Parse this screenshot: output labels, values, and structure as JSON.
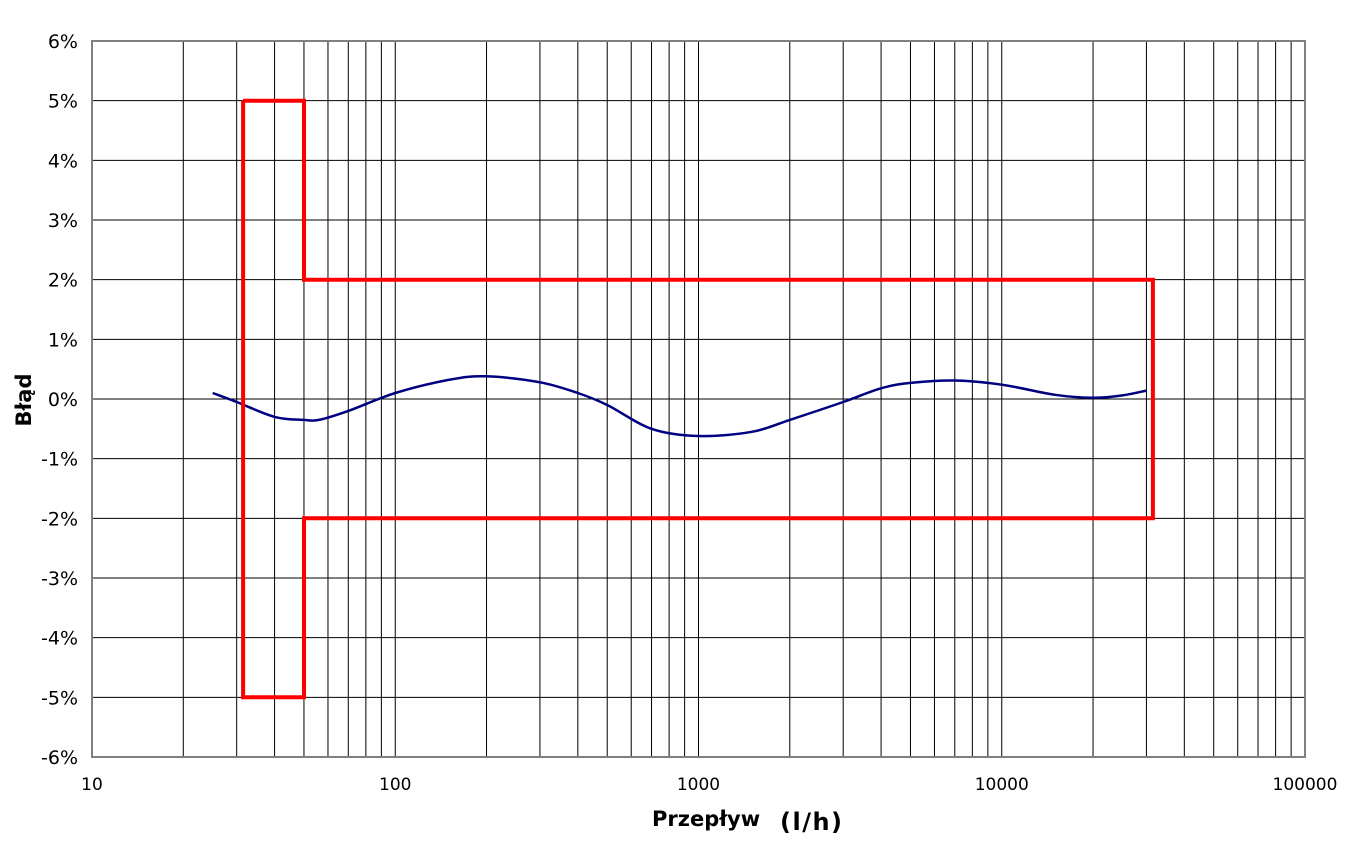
{
  "chart_data": {
    "type": "line",
    "xlabel": "Przepływ",
    "xunit": "(l/h)",
    "ylabel": "Błąd",
    "x_scale": "log",
    "xlim": [
      10,
      100000
    ],
    "ylim": [
      -6,
      6
    ],
    "y_unit_suffix": "%",
    "x_ticks": [
      "10",
      "100",
      "1000",
      "10000",
      "100000"
    ],
    "y_ticks": [
      "6%",
      "5%",
      "4%",
      "3%",
      "2%",
      "1%",
      "0%",
      "-1%",
      "-2%",
      "-3%",
      "-4%",
      "-5%",
      "-6%"
    ],
    "grid": {
      "major_x": true,
      "minor_x": true,
      "major_y": true
    },
    "legend": "none",
    "series": [
      {
        "color": "#000080",
        "kind": "curve",
        "points": [
          [
            25,
            0.1
          ],
          [
            30,
            -0.05
          ],
          [
            40,
            -0.3
          ],
          [
            50,
            -0.35
          ],
          [
            56,
            -0.35
          ],
          [
            70,
            -0.2
          ],
          [
            100,
            0.1
          ],
          [
            150,
            0.32
          ],
          [
            200,
            0.38
          ],
          [
            300,
            0.28
          ],
          [
            400,
            0.1
          ],
          [
            500,
            -0.1
          ],
          [
            700,
            -0.5
          ],
          [
            1000,
            -0.62
          ],
          [
            1500,
            -0.55
          ],
          [
            2000,
            -0.35
          ],
          [
            3000,
            -0.05
          ],
          [
            4000,
            0.18
          ],
          [
            5000,
            0.27
          ],
          [
            7000,
            0.31
          ],
          [
            10000,
            0.24
          ],
          [
            15000,
            0.07
          ],
          [
            20000,
            0.02
          ],
          [
            25000,
            0.06
          ],
          [
            30000,
            0.14
          ]
        ]
      },
      {
        "color": "#ff0000",
        "kind": "limit-envelope",
        "points": [
          [
            31.5,
            5
          ],
          [
            50,
            5
          ],
          [
            50,
            2
          ],
          [
            31500,
            2
          ],
          [
            31500,
            -2
          ],
          [
            50,
            -2
          ],
          [
            50,
            -5
          ],
          [
            31.5,
            -5
          ],
          [
            31.5,
            5
          ]
        ]
      }
    ]
  }
}
